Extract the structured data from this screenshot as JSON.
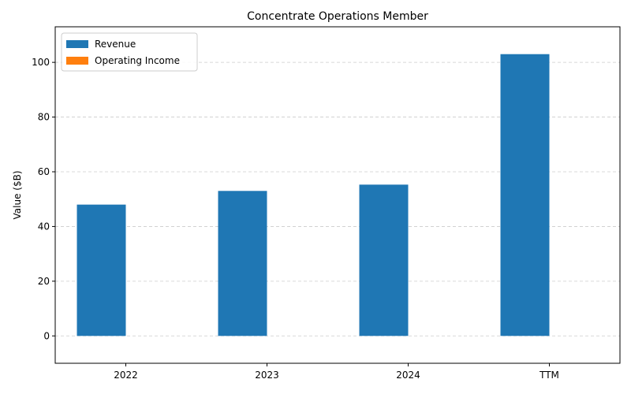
{
  "chart_data": {
    "type": "bar",
    "title": "Concentrate Operations Member",
    "xlabel": "",
    "ylabel": "Value ($B)",
    "categories": [
      "2022",
      "2023",
      "2024",
      "TTM"
    ],
    "series": [
      {
        "name": "Revenue",
        "values": [
          48.0,
          53.0,
          55.3,
          103.0
        ],
        "color": "#1f77b4"
      },
      {
        "name": "Operating Income",
        "values": [
          0,
          0,
          0,
          0
        ],
        "color": "#ff7f0e"
      }
    ],
    "ylim": [
      -10,
      113
    ],
    "yticks": [
      0,
      20,
      40,
      60,
      80,
      100
    ],
    "grid": true,
    "legend_position": "top-left"
  }
}
